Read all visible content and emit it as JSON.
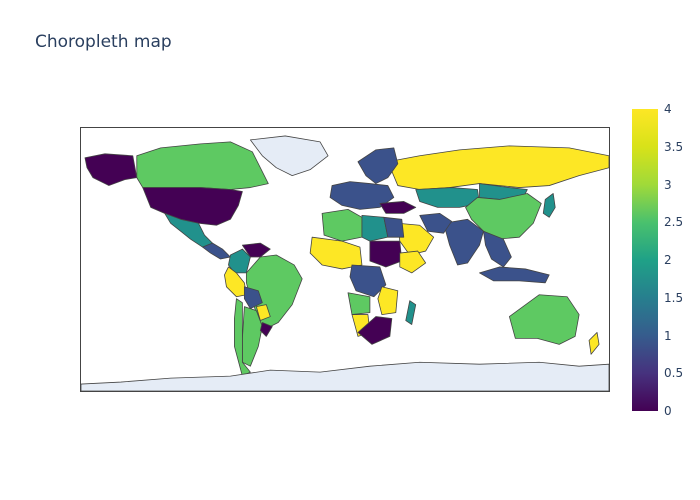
{
  "title": "Choropleth map",
  "chart_data": {
    "type": "choropleth",
    "projection": "equirectangular",
    "title": "Choropleth map",
    "colorscale": "Viridis",
    "color_range": [
      0,
      4
    ],
    "colorbar_ticks": [
      "0",
      "0.5",
      "1",
      "1.5",
      "2",
      "2.5",
      "3",
      "3.5",
      "4"
    ],
    "colorbar_tick_values": [
      0,
      0.5,
      1,
      1.5,
      2,
      2.5,
      3,
      3.5,
      4
    ],
    "colors": {
      "v0": "#440154",
      "v1": "#3b528b",
      "v2": "#21918c",
      "v3": "#5ec962",
      "v4": "#fde725",
      "nodata": "#e5ecf6",
      "border": "#444444"
    },
    "regions": [
      {
        "name": "Russia",
        "value": 4
      },
      {
        "name": "Canada",
        "value": 3
      },
      {
        "name": "Greenland",
        "value": null
      },
      {
        "name": "Alaska",
        "value": 0
      },
      {
        "name": "United States",
        "value": 0
      },
      {
        "name": "Mexico",
        "value": 2
      },
      {
        "name": "Central America",
        "value": 1
      },
      {
        "name": "Colombia",
        "value": 2
      },
      {
        "name": "Venezuela",
        "value": 0
      },
      {
        "name": "Peru",
        "value": 4
      },
      {
        "name": "Brazil",
        "value": 3
      },
      {
        "name": "Bolivia",
        "value": 1
      },
      {
        "name": "Paraguay",
        "value": 4
      },
      {
        "name": "Argentina",
        "value": 3
      },
      {
        "name": "Chile",
        "value": 3
      },
      {
        "name": "Uruguay",
        "value": 0
      },
      {
        "name": "Kazakhstan",
        "value": 2
      },
      {
        "name": "Mongolia",
        "value": 2
      },
      {
        "name": "China",
        "value": 3
      },
      {
        "name": "India",
        "value": 1
      },
      {
        "name": "Iran",
        "value": 1
      },
      {
        "name": "Saudi Arabia",
        "value": 4
      },
      {
        "name": "Japan",
        "value": 2
      },
      {
        "name": "Southeast Asia",
        "value": 1
      },
      {
        "name": "Indonesia",
        "value": 1
      },
      {
        "name": "Australia",
        "value": 3
      },
      {
        "name": "New Zealand",
        "value": 4
      },
      {
        "name": "Madagascar",
        "value": 2
      },
      {
        "name": "Algeria",
        "value": 3
      },
      {
        "name": "Libya",
        "value": 2
      },
      {
        "name": "Egypt",
        "value": 1
      },
      {
        "name": "Sudan",
        "value": 0
      },
      {
        "name": "Ethiopia",
        "value": 4
      },
      {
        "name": "West Africa",
        "value": 4
      },
      {
        "name": "DR Congo",
        "value": 1
      },
      {
        "name": "Angola",
        "value": 3
      },
      {
        "name": "Namibia",
        "value": 4
      },
      {
        "name": "South Africa",
        "value": 0
      },
      {
        "name": "Mozambique",
        "value": 4
      },
      {
        "name": "Scandinavia",
        "value": 1
      },
      {
        "name": "Western Europe",
        "value": 1
      },
      {
        "name": "Turkey",
        "value": 0
      },
      {
        "name": "Antarctica",
        "value": null
      }
    ]
  }
}
